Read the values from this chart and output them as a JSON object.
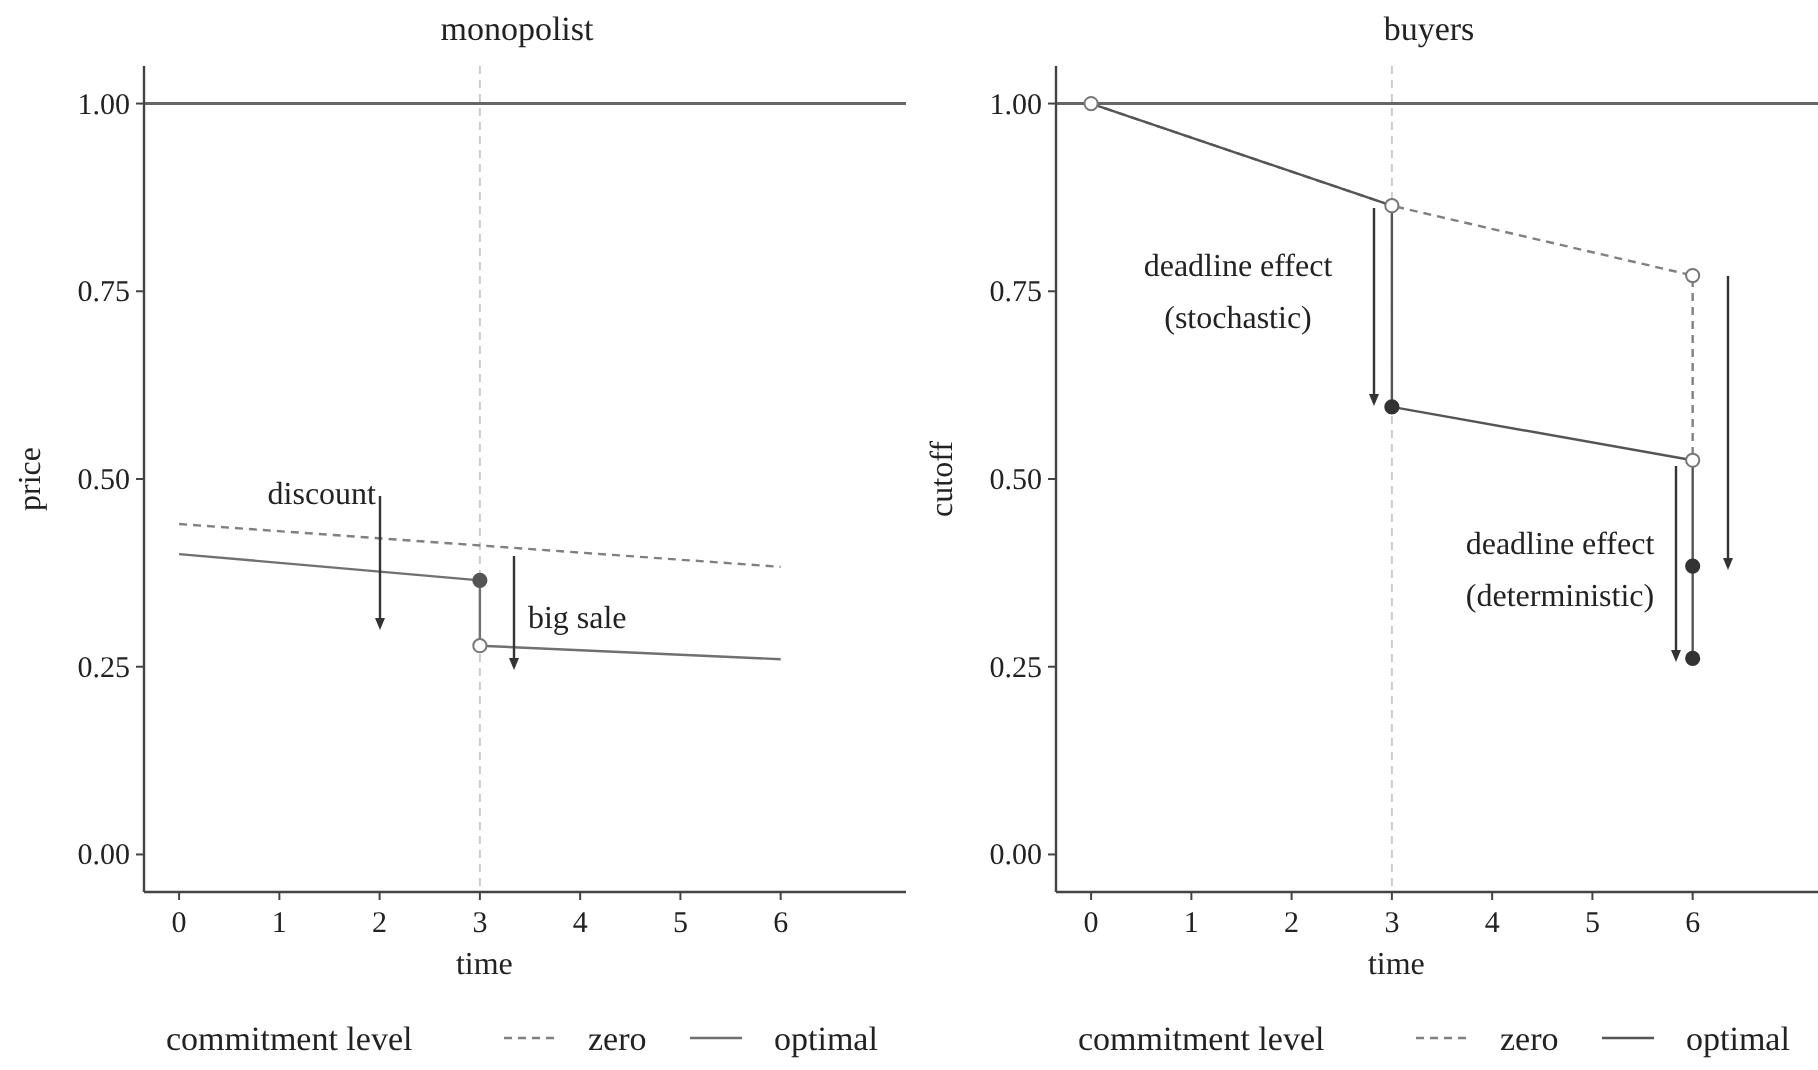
{
  "chart_data": [
    {
      "type": "line",
      "title": "monopolist",
      "xlabel": "time",
      "ylabel": "price",
      "xlim": [
        -0.35,
        7.25
      ],
      "xticks": [
        0,
        1,
        2,
        3,
        4,
        5,
        6
      ],
      "ylim": [
        -0.05,
        1.05
      ],
      "yticks": [
        {
          "value": 0,
          "label": "0.00"
        },
        {
          "value": 0.25,
          "label": "0.25"
        },
        {
          "value": 0.5,
          "label": "0.50"
        },
        {
          "value": 0.75,
          "label": "0.75"
        },
        {
          "value": 1,
          "label": "1.00"
        }
      ],
      "grid": false,
      "legend": "bottom",
      "legend_title": "commitment level",
      "series": [
        {
          "name": "zero",
          "type": "line",
          "color": "#808080",
          "line_style": "dashed",
          "x": [
            0,
            6
          ],
          "values": [
            0.44,
            0.383
          ]
        },
        {
          "name": "optimal",
          "type": "line",
          "color": "#707070",
          "line_style": "solid",
          "x": [
            0,
            3,
            3,
            6
          ],
          "values": [
            0.4,
            0.365,
            0.278,
            0.26
          ]
        },
        {
          "type": "scatter",
          "marker": "circle",
          "color": "#555555",
          "x": [
            3
          ],
          "values": [
            0.365
          ]
        },
        {
          "type": "scatter",
          "marker": "circle",
          "color": "#ffffff",
          "x": [
            3
          ],
          "values": [
            0.278
          ]
        }
      ],
      "ref_lines": [
        {
          "axis": "y",
          "value": 1,
          "color": "#666666",
          "line_style": "solid"
        },
        {
          "axis": "x",
          "value": 3,
          "color": "#cccccc",
          "line_style": "dashed"
        }
      ],
      "annotations": [
        "discount",
        {
          "text": "big sale",
          "x": 3,
          "y": 0.278
        }
      ]
    },
    {
      "type": "line",
      "title": "buyers",
      "xlabel": "time",
      "ylabel": "cutoff",
      "xlim": [
        -0.35,
        7.25
      ],
      "xticks": [
        0,
        1,
        2,
        3,
        4,
        5,
        6
      ],
      "ylim": [
        -0.05,
        1.05
      ],
      "yticks": [
        {
          "value": 0,
          "label": "0.00"
        },
        {
          "value": 0.25,
          "label": "0.25"
        },
        {
          "value": 0.5,
          "label": "0.50"
        },
        {
          "value": 0.75,
          "label": "0.75"
        },
        {
          "value": 1,
          "label": "1.00"
        }
      ],
      "grid": false,
      "legend": "bottom",
      "legend_title": "commitment level",
      "series": [
        {
          "name": "zero",
          "type": "line",
          "color": "#808080",
          "line_style": "dashed",
          "x": [
            0,
            3,
            6,
            6
          ],
          "values": [
            1,
            0.864,
            0.771,
            0.525
          ]
        },
        {
          "name": "optimal",
          "type": "line",
          "color": "#555555",
          "line_style": "solid",
          "x": [
            0,
            3,
            3,
            6,
            6
          ],
          "values": [
            1,
            0.864,
            0.596,
            0.525,
            0.261
          ]
        },
        {
          "type": "scatter",
          "marker": "circle",
          "color": "#333333",
          "x": [
            3,
            6,
            6
          ],
          "values": [
            0.596,
            0.384,
            0.261
          ]
        },
        {
          "type": "scatter",
          "marker": "circle",
          "color": "#ffffff",
          "x": [
            0,
            3,
            6,
            6
          ],
          "values": [
            1,
            0.864,
            0.771,
            0.525
          ]
        }
      ],
      "ref_lines": [
        {
          "axis": "y",
          "value": 1,
          "color": "#666666",
          "line_style": "solid"
        },
        {
          "axis": "x",
          "value": 3,
          "color": "#cccccc",
          "line_style": "dashed"
        }
      ],
      "annotations": [
        "deadline effect\n(stochastic)",
        "deadline effect\n(deterministic)"
      ]
    }
  ]
}
